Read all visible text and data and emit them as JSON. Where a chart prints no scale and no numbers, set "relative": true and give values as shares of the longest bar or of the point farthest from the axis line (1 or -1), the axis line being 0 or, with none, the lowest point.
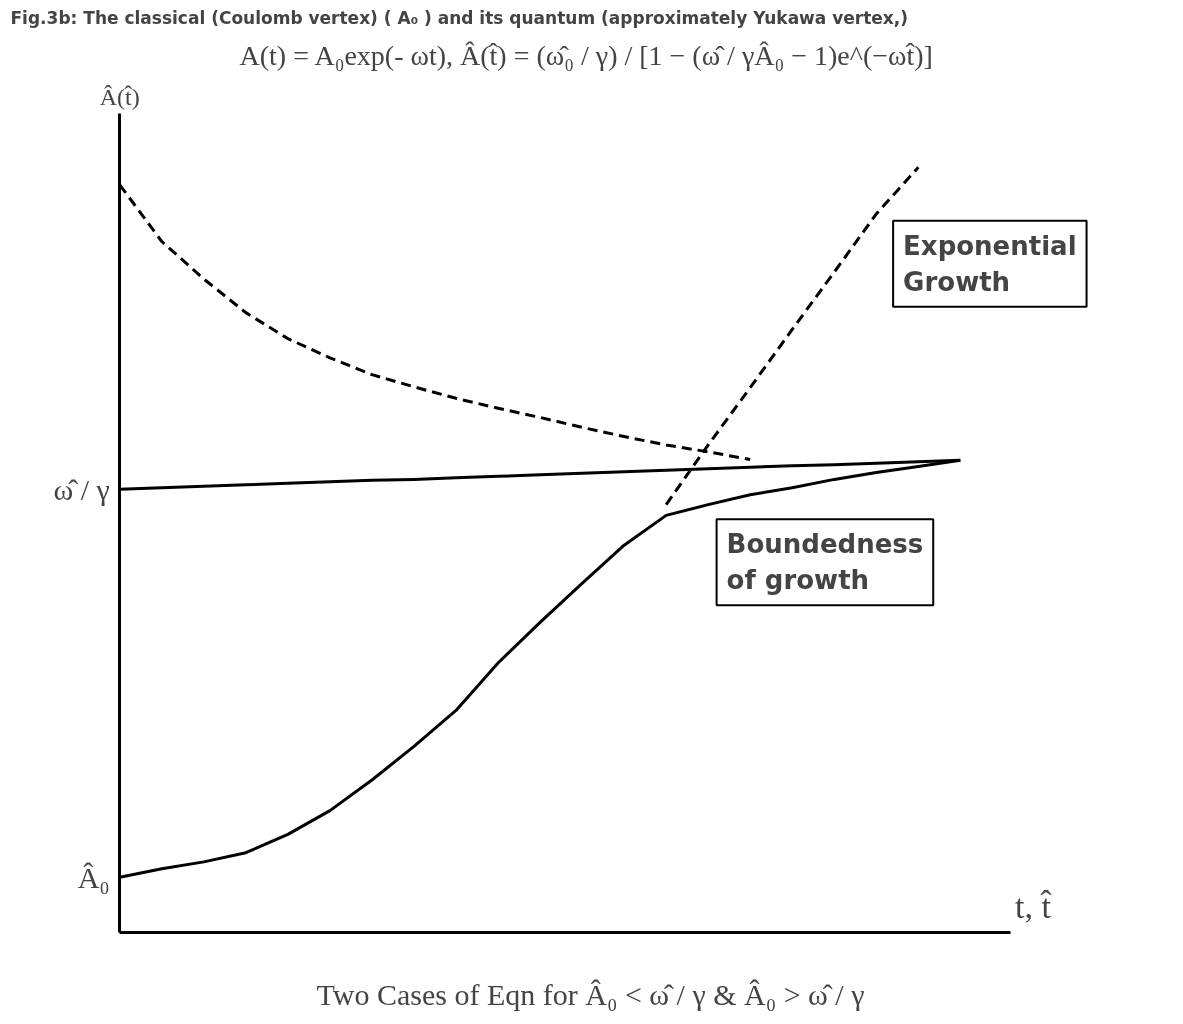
{
  "chart_data": {
    "type": "line",
    "relative": true,
    "grid": false,
    "title": "Fig.3b:  The classical (Coulomb vertex) ( A₀ ) and its quantum (approximately Yukawa vertex,)",
    "subtitle": "A(t) = A₀exp(- ωt),  Â(t̂) = (ω̂₀ / γ) / [1 − (ω̂ / γÂ₀ − 1)e^(−ωt̂)]",
    "xlabel": "t, t̂",
    "ylabel": "Â(t̂)",
    "categories": [
      null,
      null,
      null,
      null,
      null,
      null,
      null,
      null,
      null,
      null,
      null,
      null,
      null,
      null,
      null,
      null,
      null,
      null,
      null,
      null,
      null
    ],
    "series": [
      {
        "color": "#000000",
        "line_style": "dashed",
        "values": [
          0.977,
          0.903,
          0.854,
          0.81,
          0.776,
          0.751,
          0.729,
          0.713,
          0.698,
          0.685,
          0.673,
          0.66,
          0.648,
          0.637,
          0.628,
          0.618,
          null,
          null,
          null,
          null,
          null
        ]
      },
      {
        "color": "#000000",
        "line_style": "solid",
        "values": [
          0.579,
          0.581,
          0.583,
          0.585,
          0.587,
          0.589,
          0.591,
          0.592,
          0.594,
          0.596,
          0.598,
          0.6,
          0.602,
          0.604,
          0.606,
          0.608,
          0.61,
          0.611,
          0.613,
          0.615,
          0.617
        ]
      },
      {
        "color": "#000000",
        "line_style": "solid",
        "values": [
          0.072,
          0.083,
          0.092,
          0.104,
          0.128,
          0.159,
          0.199,
          0.243,
          0.29,
          0.352,
          0.405,
          0.456,
          0.506,
          0.545,
          0.559,
          0.572,
          0.581,
          0.592,
          0.601,
          0.609,
          0.617
        ]
      },
      {
        "color": "#000000",
        "line_style": "dashed",
        "values": [
          null,
          null,
          null,
          null,
          null,
          null,
          null,
          null,
          null,
          null,
          null,
          null,
          null,
          0.559,
          0.637,
          0.712,
          0.788,
          0.863,
          0.939,
          1.0,
          null
        ]
      }
    ],
    "annotations": [
      "ω̂ / γ",
      "Â₀",
      "Exponential Growth",
      "Boundedness of growth",
      "Two Cases of Eqn for Â₀ < ω̂ / γ & Â₀ > ω̂ / γ"
    ]
  }
}
